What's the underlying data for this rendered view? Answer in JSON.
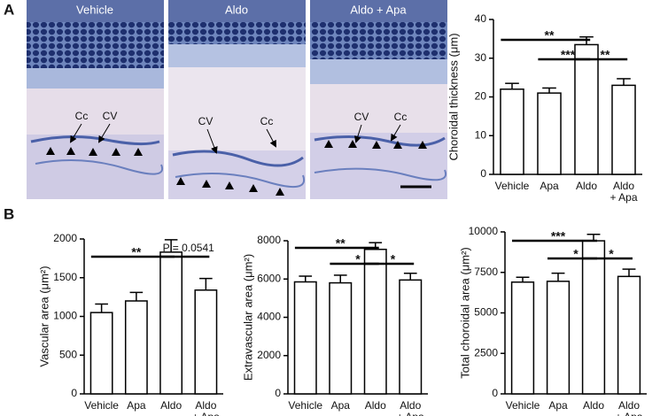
{
  "panel_labels": [
    "A",
    "B"
  ],
  "images": [
    {
      "title": "Vehicle",
      "annotations": [
        "Cc",
        "CV"
      ]
    },
    {
      "title": "Aldo",
      "annotations": [
        "CV",
        "Cc"
      ]
    },
    {
      "title": "Aldo + Apa",
      "annotations": [
        "CV",
        "Cc"
      ]
    }
  ],
  "chart_data": [
    {
      "type": "bar",
      "ylabel": "Choroidal thickness (μm)",
      "categories": [
        "Vehicle",
        "Apa",
        "Aldo",
        "Aldo + Apa"
      ],
      "values": [
        22,
        21,
        33.5,
        23
      ],
      "errors": [
        1.5,
        1.3,
        2,
        1.7
      ],
      "ylim": [
        0,
        40
      ],
      "yticks": [
        0,
        10,
        20,
        30,
        40
      ],
      "color": "#ffffff",
      "annotations": [
        {
          "text": "**",
          "from": "Vehicle",
          "to": "Aldo"
        },
        {
          "text": "***",
          "from": "Apa",
          "to": "Aldo"
        },
        {
          "text": "**",
          "from": "Aldo",
          "to": "Aldo + Apa"
        }
      ]
    },
    {
      "type": "bar",
      "ylabel": "Vascular area (μm²)",
      "categories": [
        "Vehicle",
        "Apa",
        "Aldo",
        "Aldo + Apa"
      ],
      "values": [
        1050,
        1200,
        1830,
        1340
      ],
      "errors": [
        110,
        110,
        160,
        150
      ],
      "ylim": [
        0,
        2000
      ],
      "yticks": [
        0,
        500,
        1000,
        1500,
        2000
      ],
      "color": "#ffffff",
      "annotations": [
        {
          "text": "**",
          "from": "Vehicle",
          "to": "Aldo"
        },
        {
          "text": "P = 0.0541",
          "from": "Aldo",
          "to": "Aldo + Apa"
        }
      ]
    },
    {
      "type": "bar",
      "ylabel": "Extravascular area (μm²)",
      "categories": [
        "Vehicle",
        "Apa",
        "Aldo",
        "Aldo + Apa"
      ],
      "values": [
        5850,
        5800,
        7550,
        5950
      ],
      "errors": [
        300,
        400,
        350,
        350
      ],
      "ylim": [
        0,
        8000
      ],
      "yticks": [
        0,
        2000,
        4000,
        6000,
        8000
      ],
      "color": "#ffffff",
      "annotations": [
        {
          "text": "**",
          "from": "Vehicle",
          "to": "Aldo"
        },
        {
          "text": "*",
          "from": "Apa",
          "to": "Aldo"
        },
        {
          "text": "*",
          "from": "Aldo",
          "to": "Aldo + Apa"
        }
      ]
    },
    {
      "type": "bar",
      "ylabel": "Total choroidal area (μm²)",
      "categories": [
        "Vehicle",
        "Apa",
        "Aldo",
        "Aldo + Apa"
      ],
      "values": [
        6900,
        6950,
        9450,
        7250
      ],
      "errors": [
        300,
        500,
        400,
        450
      ],
      "ylim": [
        0,
        10000
      ],
      "yticks": [
        0,
        2500,
        5000,
        7500,
        10000
      ],
      "color": "#ffffff",
      "annotations": [
        {
          "text": "***",
          "from": "Vehicle",
          "to": "Aldo"
        },
        {
          "text": "*",
          "from": "Apa",
          "to": "Aldo"
        },
        {
          "text": "*",
          "from": "Aldo",
          "to": "Aldo + Apa"
        }
      ]
    }
  ]
}
